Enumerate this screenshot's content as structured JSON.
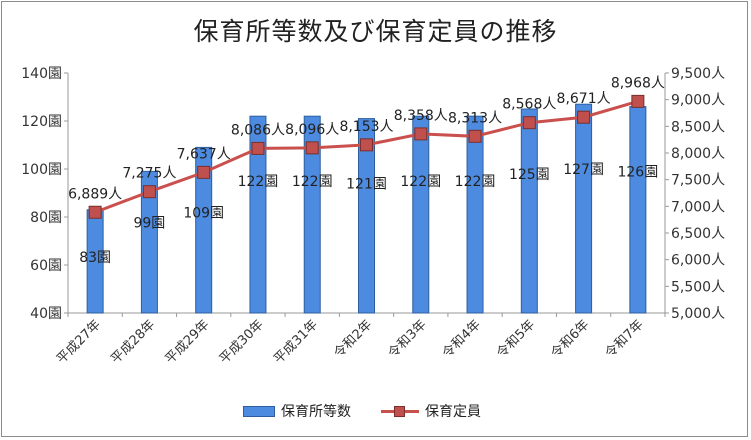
{
  "chart_data": {
    "type": "bar",
    "title": "保育所等数及び保育定員の推移",
    "categories": [
      "平成27年",
      "平成28年",
      "平成29年",
      "平成30年",
      "平成31年",
      "令和2年",
      "令和3年",
      "令和4年",
      "令和5年",
      "令和6年",
      "令和7年"
    ],
    "series": [
      {
        "name": "保育所等数",
        "type": "bar",
        "axis": "left",
        "values": [
          83,
          99,
          109,
          122,
          122,
          121,
          122,
          122,
          125,
          127,
          126
        ],
        "labels": [
          "83園",
          "99園",
          "109園",
          "122園",
          "122園",
          "121園",
          "122園",
          "122園",
          "125園",
          "127園",
          "126園"
        ],
        "color": "#4d8be0"
      },
      {
        "name": "保育定員",
        "type": "line",
        "axis": "right",
        "values": [
          6889,
          7275,
          7637,
          8086,
          8096,
          8153,
          8358,
          8313,
          8568,
          8671,
          8968
        ],
        "labels": [
          "6,889人",
          "7,275人",
          "7,637人",
          "8,086人",
          "8,096人",
          "8,153人",
          "8,358人",
          "8,313人",
          "8,568人",
          "8,671人",
          "8,968人"
        ],
        "color": "#c0504d"
      }
    ],
    "y_left": {
      "range": [
        40,
        140
      ],
      "ticks": [
        40,
        60,
        80,
        100,
        120,
        140
      ],
      "tick_labels": [
        "40園",
        "60園",
        "80園",
        "100園",
        "120園",
        "140園"
      ]
    },
    "y_right": {
      "range": [
        5000,
        9500
      ],
      "ticks": [
        5000,
        5500,
        6000,
        6500,
        7000,
        7500,
        8000,
        8500,
        9000,
        9500
      ],
      "tick_labels": [
        "5,000人",
        "5,500人",
        "6,000人",
        "6,500人",
        "7,000人",
        "7,500人",
        "8,000人",
        "8,500人",
        "9,000人",
        "9,500人"
      ]
    },
    "grid": false,
    "legend_position": "bottom"
  }
}
